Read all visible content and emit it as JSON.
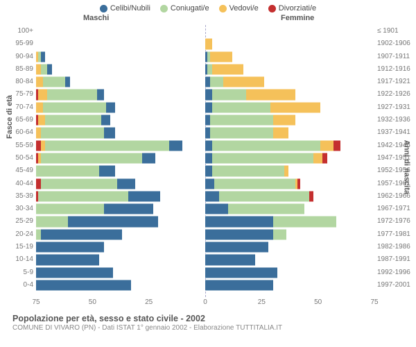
{
  "chart": {
    "type": "population-pyramid",
    "colors": {
      "celibi": "#3b6e9b",
      "coniugati": "#b2d6a1",
      "vedovi": "#f5c15a",
      "divorziati": "#c42f2f",
      "grid": "#e2e2e2",
      "centerline": "#97a8cc",
      "bg": "#ffffff"
    },
    "legend": [
      {
        "label": "Celibi/Nubili",
        "key": "celibi"
      },
      {
        "label": "Coniugati/e",
        "key": "coniugati"
      },
      {
        "label": "Vedovi/e",
        "key": "vedovi"
      },
      {
        "label": "Divorziati/e",
        "key": "divorziati"
      }
    ],
    "header_male": "Maschi",
    "header_female": "Femmine",
    "axis_left_label": "Fasce di età",
    "axis_right_label": "Anni di nascita",
    "x_max": 75,
    "x_ticks_male": [
      75,
      50,
      25,
      0
    ],
    "x_ticks_female": [
      0,
      25,
      50,
      75
    ],
    "rows": [
      {
        "age": "100+",
        "birth": "≤ 1901",
        "m": {
          "c": 0,
          "co": 0,
          "v": 0,
          "d": 0
        },
        "f": {
          "c": 0,
          "co": 0,
          "v": 0,
          "d": 0
        }
      },
      {
        "age": "95-99",
        "birth": "1902-1906",
        "m": {
          "c": 0,
          "co": 0,
          "v": 0,
          "d": 0
        },
        "f": {
          "c": 0,
          "co": 0,
          "v": 3,
          "d": 0
        }
      },
      {
        "age": "90-94",
        "birth": "1907-1911",
        "m": {
          "c": 2,
          "co": 1,
          "v": 1,
          "d": 0
        },
        "f": {
          "c": 1,
          "co": 1,
          "v": 10,
          "d": 0
        }
      },
      {
        "age": "85-89",
        "birth": "1912-1916",
        "m": {
          "c": 2,
          "co": 3,
          "v": 2,
          "d": 0
        },
        "f": {
          "c": 1,
          "co": 2,
          "v": 14,
          "d": 0
        }
      },
      {
        "age": "80-84",
        "birth": "1917-1921",
        "m": {
          "c": 2,
          "co": 10,
          "v": 3,
          "d": 0
        },
        "f": {
          "c": 2,
          "co": 6,
          "v": 18,
          "d": 0
        }
      },
      {
        "age": "75-79",
        "birth": "1922-1926",
        "m": {
          "c": 3,
          "co": 22,
          "v": 4,
          "d": 1
        },
        "f": {
          "c": 3,
          "co": 15,
          "v": 22,
          "d": 0
        }
      },
      {
        "age": "70-74",
        "birth": "1927-1931",
        "m": {
          "c": 4,
          "co": 28,
          "v": 3,
          "d": 0
        },
        "f": {
          "c": 3,
          "co": 26,
          "v": 22,
          "d": 0
        }
      },
      {
        "age": "65-69",
        "birth": "1932-1936",
        "m": {
          "c": 4,
          "co": 25,
          "v": 3,
          "d": 1
        },
        "f": {
          "c": 2,
          "co": 28,
          "v": 10,
          "d": 0
        }
      },
      {
        "age": "60-64",
        "birth": "1937-1941",
        "m": {
          "c": 5,
          "co": 28,
          "v": 2,
          "d": 0
        },
        "f": {
          "c": 2,
          "co": 28,
          "v": 7,
          "d": 0
        }
      },
      {
        "age": "55-59",
        "birth": "1942-1946",
        "m": {
          "c": 6,
          "co": 55,
          "v": 2,
          "d": 2
        },
        "f": {
          "c": 3,
          "co": 48,
          "v": 6,
          "d": 3
        }
      },
      {
        "age": "50-54",
        "birth": "1947-1951",
        "m": {
          "c": 6,
          "co": 45,
          "v": 1,
          "d": 1
        },
        "f": {
          "c": 3,
          "co": 45,
          "v": 4,
          "d": 2
        }
      },
      {
        "age": "45-49",
        "birth": "1952-1956",
        "m": {
          "c": 7,
          "co": 28,
          "v": 0,
          "d": 0
        },
        "f": {
          "c": 3,
          "co": 32,
          "v": 2,
          "d": 0
        }
      },
      {
        "age": "40-44",
        "birth": "1957-1961",
        "m": {
          "c": 8,
          "co": 34,
          "v": 0,
          "d": 2
        },
        "f": {
          "c": 4,
          "co": 36,
          "v": 1,
          "d": 1
        }
      },
      {
        "age": "35-39",
        "birth": "1962-1966",
        "m": {
          "c": 14,
          "co": 40,
          "v": 0,
          "d": 1
        },
        "f": {
          "c": 6,
          "co": 40,
          "v": 0,
          "d": 2
        }
      },
      {
        "age": "30-34",
        "birth": "1967-1971",
        "m": {
          "c": 22,
          "co": 30,
          "v": 0,
          "d": 0
        },
        "f": {
          "c": 10,
          "co": 34,
          "v": 0,
          "d": 0
        }
      },
      {
        "age": "25-29",
        "birth": "1972-1976",
        "m": {
          "c": 40,
          "co": 14,
          "v": 0,
          "d": 0
        },
        "f": {
          "c": 30,
          "co": 28,
          "v": 0,
          "d": 0
        }
      },
      {
        "age": "20-24",
        "birth": "1977-1981",
        "m": {
          "c": 36,
          "co": 2,
          "v": 0,
          "d": 0
        },
        "f": {
          "c": 30,
          "co": 6,
          "v": 0,
          "d": 0
        }
      },
      {
        "age": "15-19",
        "birth": "1982-1986",
        "m": {
          "c": 30,
          "co": 0,
          "v": 0,
          "d": 0
        },
        "f": {
          "c": 28,
          "co": 0,
          "v": 0,
          "d": 0
        }
      },
      {
        "age": "10-14",
        "birth": "1987-1991",
        "m": {
          "c": 28,
          "co": 0,
          "v": 0,
          "d": 0
        },
        "f": {
          "c": 22,
          "co": 0,
          "v": 0,
          "d": 0
        }
      },
      {
        "age": "5-9",
        "birth": "1992-1996",
        "m": {
          "c": 34,
          "co": 0,
          "v": 0,
          "d": 0
        },
        "f": {
          "c": 32,
          "co": 0,
          "v": 0,
          "d": 0
        }
      },
      {
        "age": "0-4",
        "birth": "1997-2001",
        "m": {
          "c": 42,
          "co": 0,
          "v": 0,
          "d": 0
        },
        "f": {
          "c": 30,
          "co": 0,
          "v": 0,
          "d": 0
        }
      }
    ],
    "footer_title": "Popolazione per età, sesso e stato civile - 2002",
    "footer_sub": "COMUNE DI VIVARO (PN) - Dati ISTAT 1° gennaio 2002 - Elaborazione TUTTITALIA.IT"
  }
}
